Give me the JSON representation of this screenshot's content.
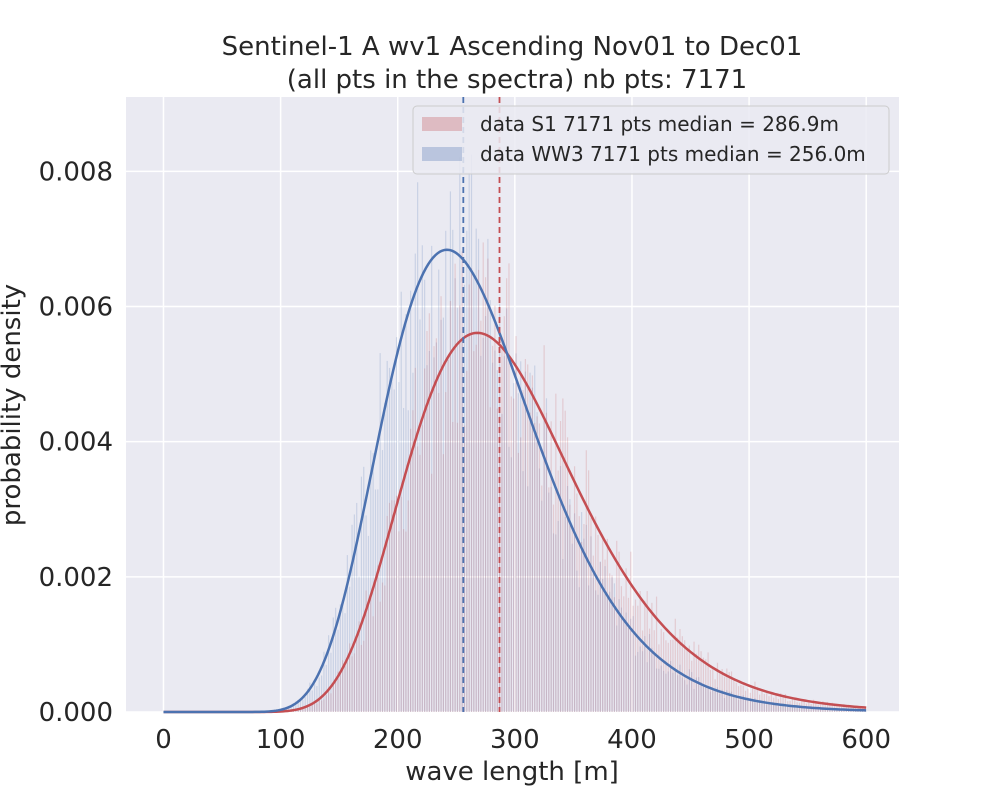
{
  "chart_data": {
    "type": "histogram",
    "title": "Sentinel-1 A wv1 Ascending Nov01 to Dec01",
    "subtitle": "(all pts in the spectra) nb pts: 7171",
    "xlabel": "wave length [m]",
    "ylabel": "probability density",
    "xlim": [
      -32,
      628
    ],
    "ylim": [
      0,
      0.0091
    ],
    "xticks": [
      0,
      100,
      200,
      300,
      400,
      500,
      600
    ],
    "yticks": [
      0.0,
      0.002,
      0.004,
      0.006,
      0.008
    ],
    "ytick_labels": [
      "0.000",
      "0.002",
      "0.004",
      "0.006",
      "0.008"
    ],
    "grid": true,
    "legend_position": "top-right",
    "series": [
      {
        "name": "data S1 7171 pts median = 286.9m",
        "color": "#c44e52",
        "median": 286.9,
        "fit_peak": {
          "x": 268,
          "y": 0.00561
        },
        "fit_shape": "right-skewed",
        "fit_x_range": [
          0,
          600
        ]
      },
      {
        "name": "data WW3 7171 pts median = 256.0m",
        "color": "#4c72b0",
        "median": 256.0,
        "fit_peak": {
          "x": 242,
          "y": 0.00684
        },
        "fit_shape": "right-skewed",
        "fit_x_range": [
          0,
          600
        ]
      }
    ]
  }
}
